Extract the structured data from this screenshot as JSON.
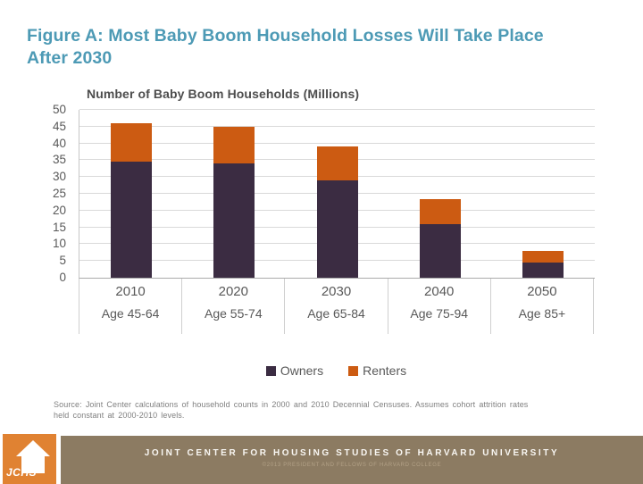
{
  "title": "Figure A: Most Baby Boom Household Losses Will Take Place After 2030",
  "chart_data": {
    "type": "bar",
    "stacked": true,
    "title": "Number of Baby Boom Households (Millions)",
    "categories": [
      "2010",
      "2020",
      "2030",
      "2040",
      "2050"
    ],
    "category_sublabels": [
      "Age 45-64",
      "Age 55-74",
      "Age 65-84",
      "Age 75-94",
      "Age 85+"
    ],
    "series": [
      {
        "name": "Owners",
        "color": "#3B2C42",
        "values": [
          34.5,
          34,
          29,
          16,
          4.5
        ]
      },
      {
        "name": "Renters",
        "color": "#CC5B12",
        "values": [
          11.5,
          11,
          10,
          7.5,
          3.5
        ]
      }
    ],
    "totals": [
      46,
      45,
      39,
      23.5,
      8
    ],
    "ylim": [
      0,
      50
    ],
    "ytick_step": 5,
    "grid": true,
    "legend_position": "bottom"
  },
  "source_note": {
    "line1": "Source: Joint Center calculations of household counts in 2000 and 2010 Decennial Censuses. Assumes cohort attrition rates",
    "line2": "held constant at 2000-2010 levels."
  },
  "footer": {
    "logo_text": "JCHS",
    "org_name": "JOINT CENTER FOR HOUSING STUDIES OF HARVARD UNIVERSITY",
    "copyright": "©2013 PRESIDENT AND FELLOWS OF HARVARD COLLEGE"
  },
  "colors": {
    "title_teal": "#4D9AB5",
    "owners": "#3B2C42",
    "renters": "#CC5B12",
    "logo_orange": "#E08232",
    "footer_brown": "#8C7B62",
    "gridline": "#D9D9D9",
    "axis_text": "#595959"
  }
}
